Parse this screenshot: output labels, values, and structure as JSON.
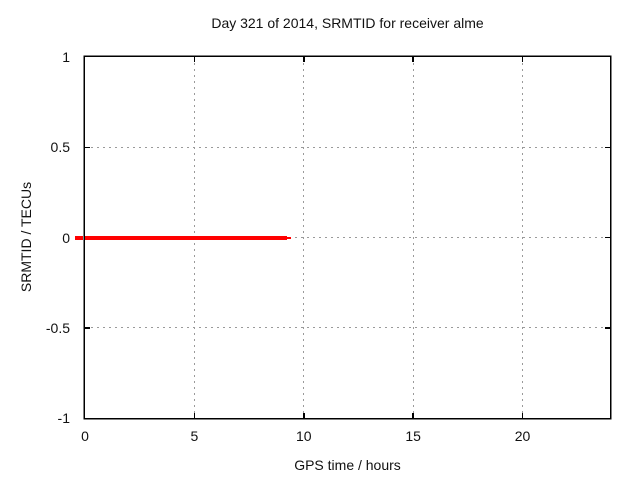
{
  "chart_data": {
    "type": "line",
    "title": "Day 321 of 2014, SRMTID for receiver alme",
    "xlabel": "GPS time / hours",
    "ylabel": "SRMTID / TECUs",
    "xlim": [
      0,
      24
    ],
    "ylim": [
      -1,
      1
    ],
    "xticks": [
      0,
      5,
      10,
      15,
      20
    ],
    "xtick_labels": [
      "0",
      "5",
      "10",
      "15",
      "20"
    ],
    "yticks": [
      -1,
      -0.5,
      0,
      0.5,
      1
    ],
    "ytick_labels": [
      "-1",
      "-0.5",
      "0",
      "0.5",
      "1"
    ],
    "grid": true,
    "legend": "none",
    "background_color": "#ffffff",
    "border_color": "#000000",
    "grid_color": "#9a9a9a",
    "series": [
      {
        "name": "SRMTID",
        "color": "#ff0000",
        "description": "constant value 0 TECUs from GPS time 0 h to about 9.25 h",
        "segments": [
          {
            "x_start": 0,
            "x_end": 9.25,
            "y": 0,
            "thickness_px": 4
          },
          {
            "x_start": 9.25,
            "x_end": 9.4,
            "y": 0,
            "thickness_px": 2
          },
          {
            "x_start": -0.45,
            "x_end": -0.1,
            "y": 0,
            "thickness_px": 4
          }
        ]
      }
    ]
  }
}
